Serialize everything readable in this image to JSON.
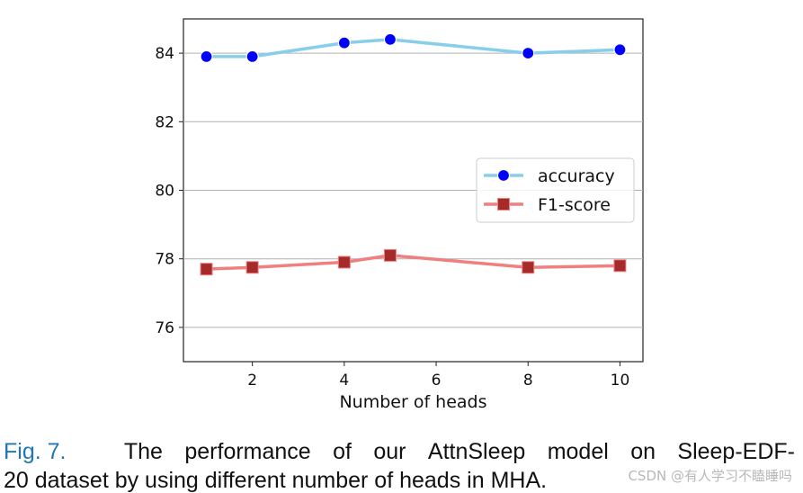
{
  "chart_data": {
    "type": "line",
    "x": [
      1,
      2,
      4,
      5,
      8,
      10
    ],
    "series": [
      {
        "name": "accuracy",
        "values": [
          83.9,
          83.9,
          84.3,
          84.4,
          84.0,
          84.1
        ],
        "color": "#87ceeb",
        "marker": "circle",
        "marker_color": "#0000ff"
      },
      {
        "name": "F1-score",
        "values": [
          77.7,
          77.75,
          77.9,
          78.1,
          77.75,
          77.8
        ],
        "color": "#f08080",
        "marker": "square",
        "marker_color": "#a52a2a"
      }
    ],
    "xlabel": "Number of heads",
    "ylabel": "",
    "xlim": [
      0.5,
      10.5
    ],
    "ylim": [
      75.0,
      85.0
    ],
    "xticks": [
      2,
      4,
      6,
      8,
      10
    ],
    "yticks": [
      76,
      78,
      80,
      82,
      84
    ],
    "grid": "horizontal",
    "legend_position": "center-right"
  },
  "caption": {
    "label": "Fig. 7.",
    "words": [
      "The",
      "performance",
      "of",
      "our",
      "AttnSleep",
      "model",
      "on",
      "Sleep-EDF-"
    ],
    "line2": "20 dataset by using different number of heads in MHA."
  },
  "watermark": "CSDN @有人学习不瞌睡吗"
}
